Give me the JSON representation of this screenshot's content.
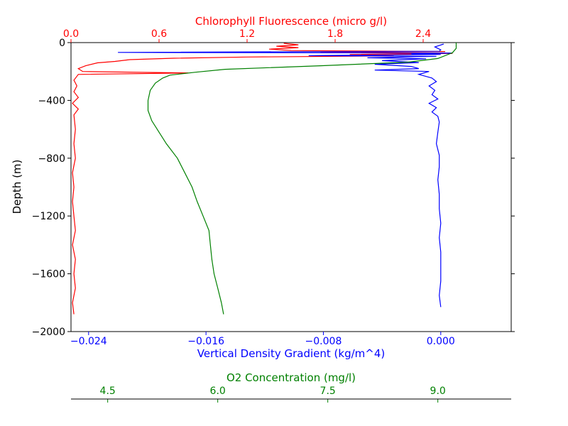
{
  "chart_data": {
    "type": "line",
    "title": "",
    "colors": {
      "top": "#ff0000",
      "bottom": "#0000ff",
      "extra": "#008000",
      "axis": "#000000"
    },
    "y_axis": {
      "label": "Depth (m)",
      "ylim": [
        -2000,
        0
      ],
      "ticks": [
        0,
        -400,
        -800,
        -1200,
        -1600,
        -2000
      ],
      "tick_labels": [
        "0",
        "−400",
        "−800",
        "−1200",
        "−1600",
        "−2000"
      ]
    },
    "x_axes": {
      "top": {
        "label": "Chlorophyll Fluorescence (micro g/l)",
        "xlim": [
          0.0,
          3.0
        ],
        "ticks": [
          0.0,
          0.6,
          1.2,
          1.8,
          2.4
        ],
        "tick_labels": [
          "0.0",
          "0.6",
          "1.2",
          "1.8",
          "2.4"
        ]
      },
      "bottom": {
        "label": "Vertical Density Gradient (kg/m^4)",
        "xlim": [
          -0.0252,
          0.0048
        ],
        "ticks": [
          -0.024,
          -0.016,
          -0.008,
          0.0
        ],
        "tick_labels": [
          "−0.024",
          "−0.016",
          "−0.008",
          "0.000"
        ]
      },
      "extra": {
        "label": "O2 Concentration (mg/l)",
        "xlim": [
          4.0,
          10.0
        ],
        "ticks": [
          4.5,
          6.0,
          7.5,
          9.0
        ],
        "tick_labels": [
          "4.5",
          "6.0",
          "7.5",
          "9.0"
        ]
      }
    },
    "series": [
      {
        "name": "Chlorophyll Fluorescence (micro g/l)",
        "axis": "top",
        "points": [
          [
            1.45,
            -5
          ],
          [
            1.55,
            -15
          ],
          [
            1.4,
            -25
          ],
          [
            1.55,
            -35
          ],
          [
            1.35,
            -45
          ],
          [
            1.5,
            -55
          ],
          [
            2.55,
            -62
          ],
          [
            1.7,
            -70
          ],
          [
            2.6,
            -75
          ],
          [
            1.9,
            -82
          ],
          [
            2.2,
            -92
          ],
          [
            1.2,
            -100
          ],
          [
            0.7,
            -108
          ],
          [
            0.4,
            -118
          ],
          [
            0.3,
            -130
          ],
          [
            0.18,
            -140
          ],
          [
            0.1,
            -160
          ],
          [
            0.05,
            -180
          ],
          [
            0.08,
            -200
          ],
          [
            0.8,
            -210
          ],
          [
            0.05,
            -220
          ],
          [
            0.02,
            -260
          ],
          [
            0.04,
            -300
          ],
          [
            0.02,
            -340
          ],
          [
            0.05,
            -380
          ],
          [
            0.01,
            -420
          ],
          [
            0.05,
            -460
          ],
          [
            0.02,
            -500
          ],
          [
            0.03,
            -600
          ],
          [
            0.02,
            -700
          ],
          [
            0.03,
            -800
          ],
          [
            0.01,
            -900
          ],
          [
            0.02,
            -1000
          ],
          [
            0.01,
            -1100
          ],
          [
            0.02,
            -1200
          ],
          [
            0.03,
            -1300
          ],
          [
            0.01,
            -1400
          ],
          [
            0.03,
            -1500
          ],
          [
            0.02,
            -1600
          ],
          [
            0.03,
            -1700
          ],
          [
            0.01,
            -1800
          ],
          [
            0.02,
            -1880
          ]
        ]
      },
      {
        "name": "Vertical Density Gradient (kg/m^4)",
        "axis": "bottom",
        "points": [
          [
            0.0002,
            -10
          ],
          [
            -0.0004,
            -30
          ],
          [
            0.0,
            -50
          ],
          [
            -0.0001,
            -60
          ],
          [
            -0.022,
            -68
          ],
          [
            0.0008,
            -72
          ],
          [
            -0.002,
            -78
          ],
          [
            0.0,
            -82
          ],
          [
            -0.009,
            -90
          ],
          [
            -0.0003,
            -95
          ],
          [
            -0.005,
            -105
          ],
          [
            -0.001,
            -112
          ],
          [
            -0.004,
            -125
          ],
          [
            -0.0015,
            -138
          ],
          [
            -0.0045,
            -150
          ],
          [
            -0.002,
            -165
          ],
          [
            -0.0015,
            -180
          ],
          [
            -0.0045,
            -190
          ],
          [
            -0.0008,
            -200
          ],
          [
            -0.0015,
            -220
          ],
          [
            -0.0006,
            -245
          ],
          [
            -0.0003,
            -270
          ],
          [
            -0.0008,
            -300
          ],
          [
            -0.0004,
            -330
          ],
          [
            -0.0006,
            -360
          ],
          [
            -0.0002,
            -390
          ],
          [
            -0.0008,
            -420
          ],
          [
            -0.0003,
            -450
          ],
          [
            -0.0006,
            -480
          ],
          [
            -0.0002,
            -510
          ],
          [
            -0.0001,
            -550
          ],
          [
            -0.0002,
            -620
          ],
          [
            -0.0003,
            -700
          ],
          [
            -0.0001,
            -780
          ],
          [
            -0.0001,
            -860
          ],
          [
            -0.0002,
            -950
          ],
          [
            -0.0001,
            -1050
          ],
          [
            -0.0001,
            -1150
          ],
          [
            0.0,
            -1250
          ],
          [
            -0.0001,
            -1350
          ],
          [
            0.0,
            -1450
          ],
          [
            0.0,
            -1550
          ],
          [
            0.0,
            -1650
          ],
          [
            -0.0001,
            -1750
          ],
          [
            0.0,
            -1830
          ]
        ]
      },
      {
        "name": "O2 Concentration (mg/l)",
        "axis": "extra",
        "points": [
          [
            9.25,
            0
          ],
          [
            9.25,
            -40
          ],
          [
            9.2,
            -70
          ],
          [
            9.0,
            -110
          ],
          [
            8.6,
            -135
          ],
          [
            7.4,
            -160
          ],
          [
            6.1,
            -185
          ],
          [
            5.7,
            -205
          ],
          [
            5.35,
            -225
          ],
          [
            5.25,
            -245
          ],
          [
            5.15,
            -280
          ],
          [
            5.08,
            -330
          ],
          [
            5.05,
            -400
          ],
          [
            5.05,
            -470
          ],
          [
            5.1,
            -540
          ],
          [
            5.2,
            -620
          ],
          [
            5.3,
            -700
          ],
          [
            5.45,
            -800
          ],
          [
            5.55,
            -900
          ],
          [
            5.65,
            -1000
          ],
          [
            5.72,
            -1100
          ],
          [
            5.8,
            -1200
          ],
          [
            5.88,
            -1300
          ],
          [
            5.9,
            -1400
          ],
          [
            5.92,
            -1500
          ],
          [
            5.95,
            -1600
          ],
          [
            6.0,
            -1700
          ],
          [
            6.05,
            -1800
          ],
          [
            6.08,
            -1880
          ]
        ]
      }
    ]
  }
}
